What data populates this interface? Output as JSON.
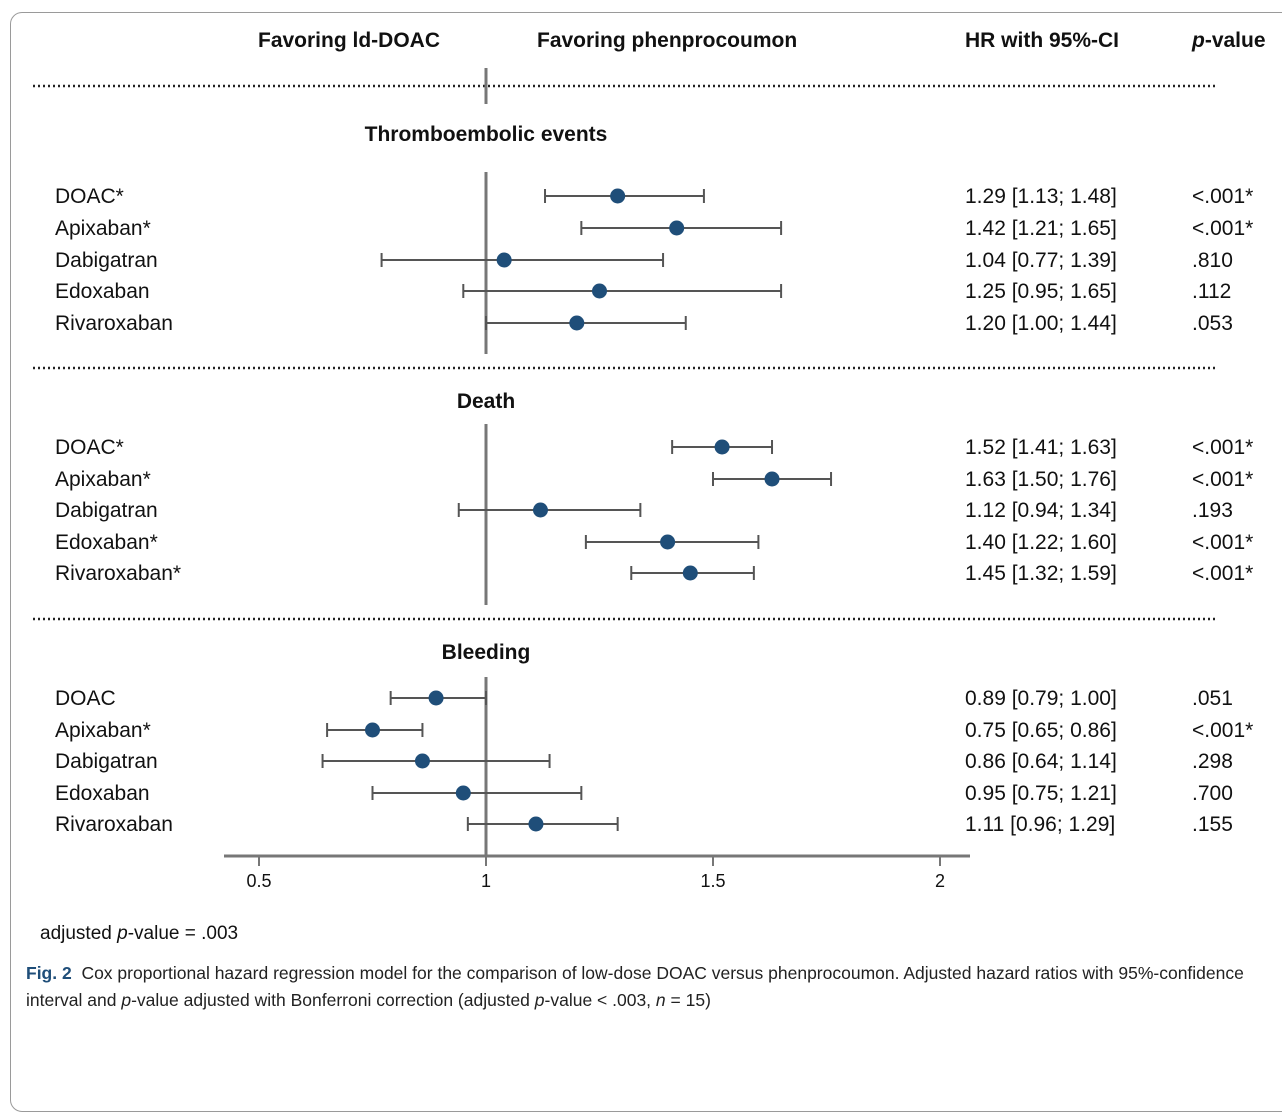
{
  "header": {
    "favoring_left": "Favoring ld-DOAC",
    "favoring_right": "Favoring phenprocoumon",
    "hr_col": "HR with 95%-CI",
    "p_col_italic": "p",
    "p_col_rest": "-value"
  },
  "footnote": {
    "prefix": "adjusted ",
    "p_italic": "p",
    "rest": "-value = .003"
  },
  "caption": {
    "label": "Fig. 2",
    "text_1": "Cox proportional hazard regression model for the comparison of low-dose DOAC versus phenprocoumon. Adjusted hazard ratios with 95%-confidence interval and ",
    "p1": "p",
    "text_2": "-value adjusted with Bonferroni correction (adjusted ",
    "p2": "p",
    "text_3": "-value < .003, ",
    "n": "n",
    "text_4": " = 15)"
  },
  "colors": {
    "marker": "#1f4e79",
    "line": "#555555",
    "axis": "#777777",
    "ref": "#777777"
  },
  "chart_data": {
    "type": "forest",
    "x_axis": {
      "ticks": [
        0.5,
        1,
        1.5,
        2
      ],
      "tick_labels": [
        "0.5",
        "1",
        "1.5",
        "2"
      ],
      "reference_line": 1
    },
    "groups": [
      {
        "title": "Thromboembolic events",
        "rows": [
          {
            "label": "DOAC*",
            "hr": 1.29,
            "lo": 1.13,
            "hi": 1.48,
            "ci_text": "1.29 [1.13; 1.48]",
            "p": "<.001*"
          },
          {
            "label": "Apixaban*",
            "hr": 1.42,
            "lo": 1.21,
            "hi": 1.65,
            "ci_text": "1.42 [1.21; 1.65]",
            "p": "<.001*"
          },
          {
            "label": "Dabigatran",
            "hr": 1.04,
            "lo": 0.77,
            "hi": 1.39,
            "ci_text": "1.04 [0.77; 1.39]",
            "p": ".810"
          },
          {
            "label": "Edoxaban",
            "hr": 1.25,
            "lo": 0.95,
            "hi": 1.65,
            "ci_text": "1.25 [0.95; 1.65]",
            "p": ".112"
          },
          {
            "label": "Rivaroxaban",
            "hr": 1.2,
            "lo": 1.0,
            "hi": 1.44,
            "ci_text": "1.20 [1.00; 1.44]",
            "p": ".053"
          }
        ]
      },
      {
        "title": "Death",
        "rows": [
          {
            "label": "DOAC*",
            "hr": 1.52,
            "lo": 1.41,
            "hi": 1.63,
            "ci_text": "1.52 [1.41; 1.63]",
            "p": "<.001*"
          },
          {
            "label": "Apixaban*",
            "hr": 1.63,
            "lo": 1.5,
            "hi": 1.76,
            "ci_text": "1.63 [1.50; 1.76]",
            "p": "<.001*"
          },
          {
            "label": "Dabigatran",
            "hr": 1.12,
            "lo": 0.94,
            "hi": 1.34,
            "ci_text": "1.12 [0.94; 1.34]",
            "p": ".193"
          },
          {
            "label": "Edoxaban*",
            "hr": 1.4,
            "lo": 1.22,
            "hi": 1.6,
            "ci_text": "1.40 [1.22; 1.60]",
            "p": "<.001*"
          },
          {
            "label": "Rivaroxaban*",
            "hr": 1.45,
            "lo": 1.32,
            "hi": 1.59,
            "ci_text": "1.45 [1.32; 1.59]",
            "p": "<.001*"
          }
        ]
      },
      {
        "title": "Bleeding",
        "rows": [
          {
            "label": "DOAC",
            "hr": 0.89,
            "lo": 0.79,
            "hi": 1.0,
            "ci_text": "0.89 [0.79; 1.00]",
            "p": ".051"
          },
          {
            "label": "Apixaban*",
            "hr": 0.75,
            "lo": 0.65,
            "hi": 0.86,
            "ci_text": "0.75 [0.65; 0.86]",
            "p": "<.001*"
          },
          {
            "label": "Dabigatran",
            "hr": 0.86,
            "lo": 0.64,
            "hi": 1.14,
            "ci_text": "0.86 [0.64; 1.14]",
            "p": ".298"
          },
          {
            "label": "Edoxaban",
            "hr": 0.95,
            "lo": 0.75,
            "hi": 1.21,
            "ci_text": "0.95 [0.75; 1.21]",
            "p": ".700"
          },
          {
            "label": "Rivaroxaban",
            "hr": 1.11,
            "lo": 0.96,
            "hi": 1.29,
            "ci_text": "1.11 [0.96; 1.29]",
            "p": ".155"
          }
        ]
      }
    ]
  }
}
